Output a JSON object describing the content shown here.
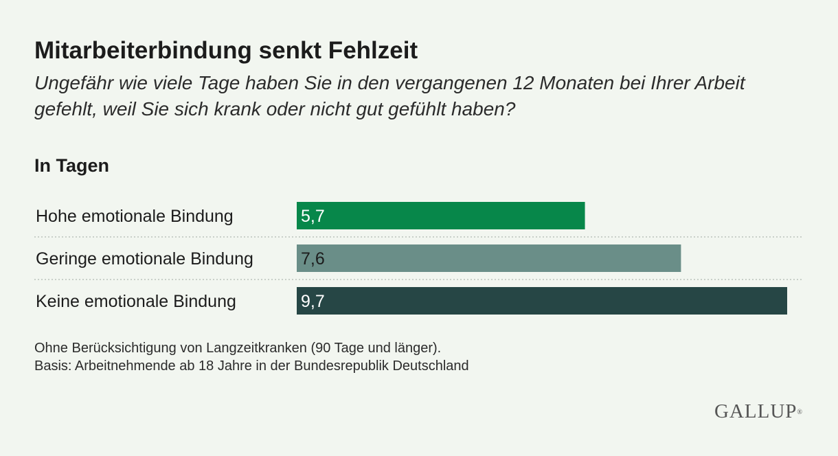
{
  "title": "Mitarbeiterbindung senkt Fehlzeit",
  "subtitle": "Ungefähr wie viele Tage haben Sie in den vergangenen 12 Monaten bei Ihrer Arbeit gefehlt, weil Sie sich krank oder nicht gut gefühlt haben?",
  "unit_label": "In Tagen",
  "chart_data": {
    "type": "bar",
    "orientation": "horizontal",
    "categories": [
      "Hohe emotionale Bindung",
      "Geringe emotionale Bindung",
      "Keine emotionale Bindung"
    ],
    "values": [
      5.7,
      7.6,
      9.7
    ],
    "value_labels": [
      "5,7",
      "7,6",
      "9,7"
    ],
    "colors": [
      "#07874a",
      "#6a8e88",
      "#264645"
    ],
    "label_colors": [
      "#ffffff",
      "#1c1c1c",
      "#ffffff"
    ],
    "xlim": [
      0,
      9.7
    ],
    "grid": false
  },
  "footnotes": [
    "Ohne Berücksichtigung von Langzeitkranken (90 Tage und länger).",
    "Basis: Arbeitnehmende ab 18 Jahre in der Bundesrepublik Deutschland"
  ],
  "logo": {
    "text": "GALLUP",
    "mark": "®"
  }
}
